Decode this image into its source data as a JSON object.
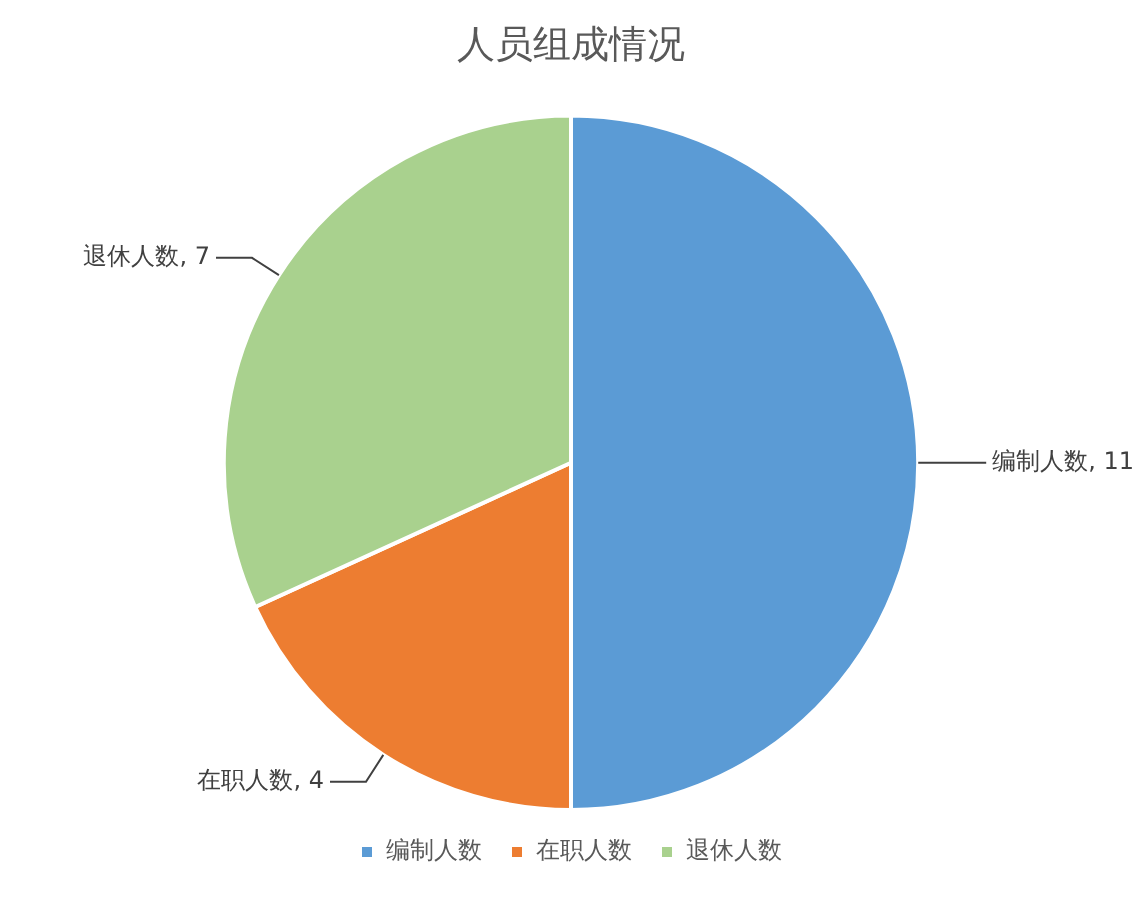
{
  "chart_data": {
    "type": "pie",
    "title": "人员组成情况",
    "categories": [
      "编制人数",
      "在职人数",
      "退休人数"
    ],
    "values": [
      11,
      4,
      7
    ],
    "colors": [
      "#5b9bd5",
      "#ed7d31",
      "#a9d18e"
    ],
    "value_labels": [
      "编制人数, 11",
      "在职人数, 4",
      "退休人数, 7"
    ],
    "legend": "bottom"
  }
}
